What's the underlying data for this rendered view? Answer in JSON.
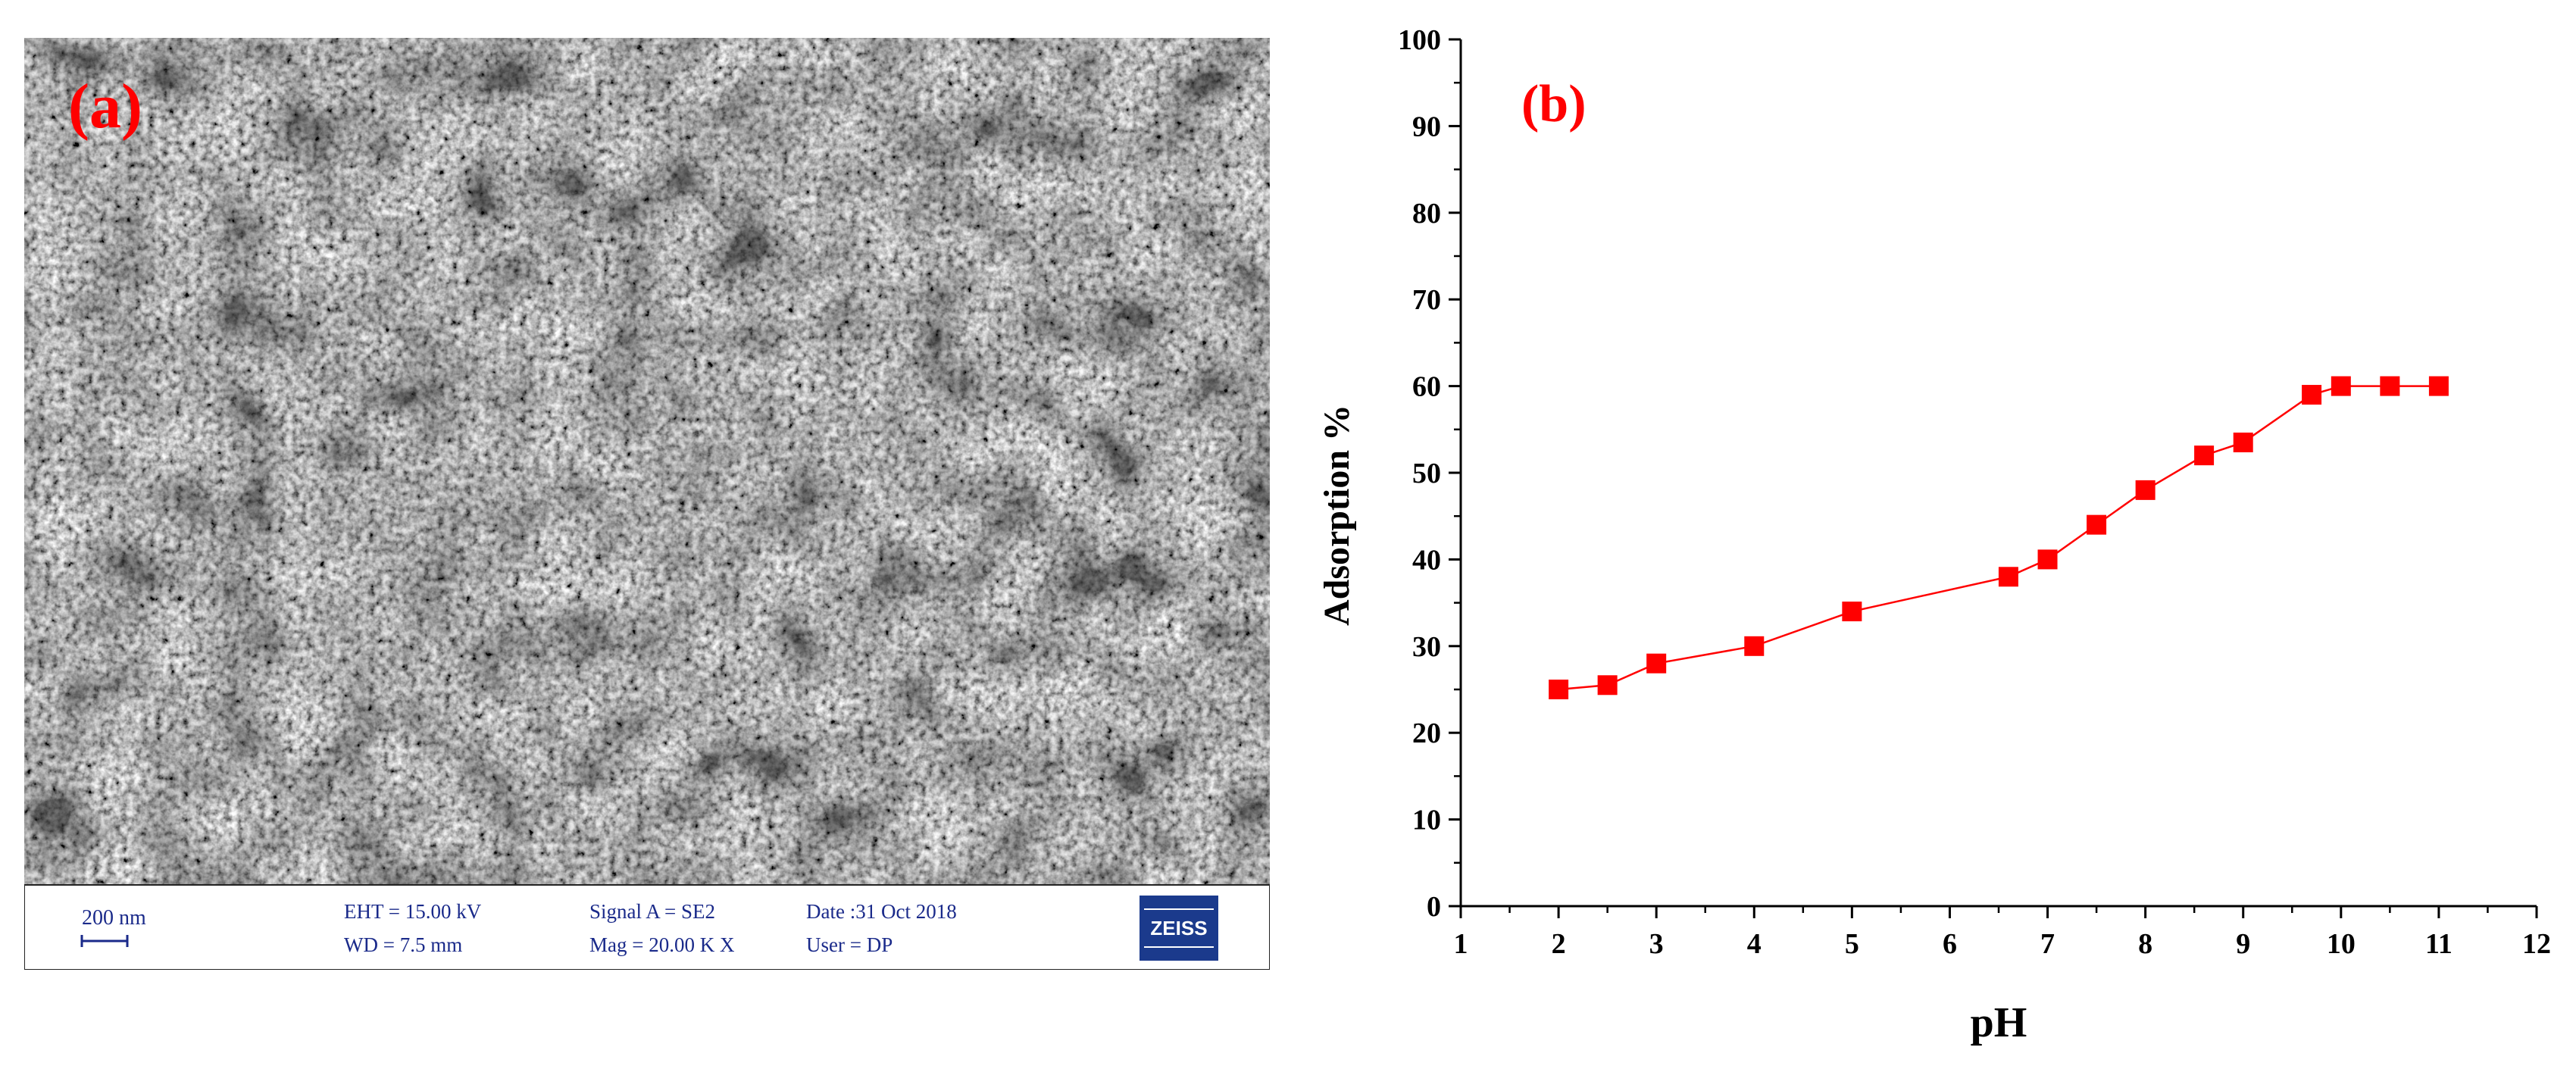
{
  "figure": {
    "panels": [
      {
        "label": "(a)",
        "sem_info": {
          "scale_bar": "200 nm",
          "eht": "EHT = 15.00 kV",
          "wd": "WD = 7.5 mm",
          "signal": "Signal A = SE2",
          "mag": "Mag =  20.00 K X",
          "date": "Date :31 Oct 2018",
          "user": "User =  DP",
          "logo": "ZEISS"
        }
      },
      {
        "label": "(b)"
      }
    ],
    "colors": {
      "series": "#ff0000",
      "panel_label": "#ff0000",
      "logo_bg": "#1b3a8c",
      "info_text": "#1a2a8a"
    }
  },
  "chart_data": {
    "type": "line",
    "title": "",
    "xlabel": "pH",
    "ylabel": "Adsorption %",
    "xlim": [
      1,
      12
    ],
    "ylim": [
      0,
      100
    ],
    "xticks": [
      "1",
      "2",
      "3",
      "4",
      "5",
      "6",
      "7",
      "8",
      "9",
      "10",
      "11",
      "12"
    ],
    "yticks": [
      "0",
      "10",
      "20",
      "30",
      "40",
      "50",
      "60",
      "70",
      "80",
      "90",
      "100"
    ],
    "grid": false,
    "legend": "none",
    "marker": "square",
    "series": [
      {
        "x": [
          2,
          2.5,
          3,
          4,
          5,
          6.6,
          7,
          7.5,
          8,
          8.6,
          9,
          9.7,
          10,
          10.5,
          11
        ],
        "y": [
          25,
          25.5,
          28,
          30,
          34,
          38,
          40,
          44,
          48,
          52,
          53.5,
          59,
          60,
          60,
          60
        ]
      }
    ]
  }
}
